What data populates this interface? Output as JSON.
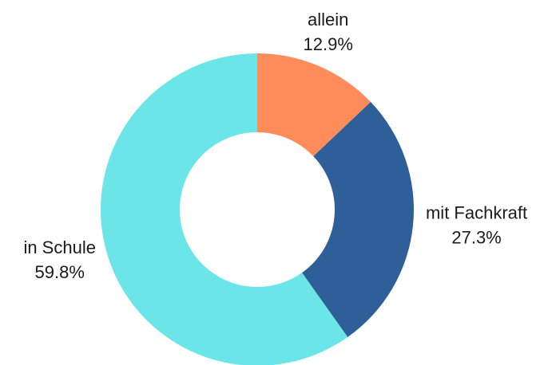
{
  "chart_data": {
    "type": "donut",
    "categories": [
      "allein",
      "mit Fachkraft",
      "in Schule"
    ],
    "values": [
      12.9,
      27.3,
      59.8
    ],
    "value_labels": [
      "12.9%",
      "27.3%",
      "59.8%"
    ],
    "colors": [
      "#ff8c5a",
      "#2f5f98",
      "#6ce5e8"
    ]
  }
}
